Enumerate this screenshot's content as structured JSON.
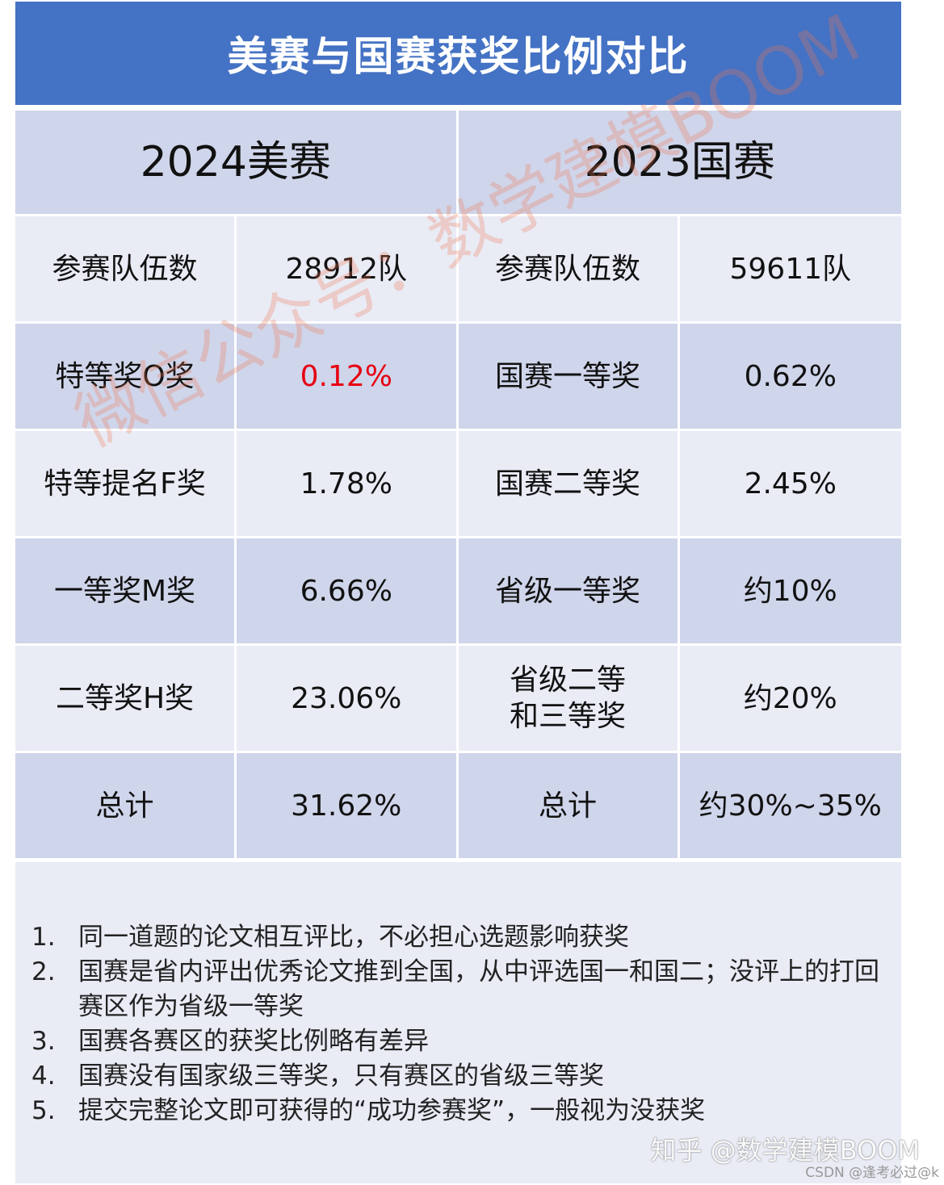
{
  "title": "美赛与国赛获奖比例对比",
  "header": {
    "left": "2024美赛",
    "right": "2023国赛"
  },
  "rows": [
    {
      "c1": "参赛队伍数",
      "c2": "28912队",
      "c3": "参赛队伍数",
      "c4": "59611队"
    },
    {
      "c1": "特等奖O奖",
      "c2": "0.12%",
      "c3": "国赛一等奖",
      "c4": "0.62%"
    },
    {
      "c1": "特等提名F奖",
      "c2": "1.78%",
      "c3": "国赛二等奖",
      "c4": "2.45%"
    },
    {
      "c1": "一等奖M奖",
      "c2": "6.66%",
      "c3": "省级一等奖",
      "c4": "约10%"
    },
    {
      "c1": "二等奖H奖",
      "c2": "23.06%",
      "c3": "省级二等和三等奖",
      "c4": "约20%"
    },
    {
      "c1": "总计",
      "c2": "31.62%",
      "c3": "总计",
      "c4": "约30%~35%"
    }
  ],
  "notes": [
    {
      "num": "1.",
      "text": "同一道题的论文相互评比，不必担心选题影响获奖"
    },
    {
      "num": "2.",
      "text": "国赛是省内评出优秀论文推到全国，从中评选国一和国二；没评上的打回赛区作为省级一等奖"
    },
    {
      "num": "3.",
      "text": "国赛各赛区的获奖比例略有差异"
    },
    {
      "num": "4.",
      "text": "国赛没有国家级三等奖，只有赛区的省级三等奖"
    },
    {
      "num": "5.",
      "text": "提交完整论文即可获得的“成功参赛奖”，一般视为没获奖"
    }
  ],
  "watermark": "微信公众号：数学建模BOOM",
  "zhihu_mark": "知乎 @数学建模BOOM",
  "csdn_mark": "CSDN @逢考必过@k",
  "colors": {
    "title_bg": "#4472c4",
    "dark_row": "#cfd5ea",
    "light_row": "#e9ebf5",
    "highlight": "#e60012"
  }
}
